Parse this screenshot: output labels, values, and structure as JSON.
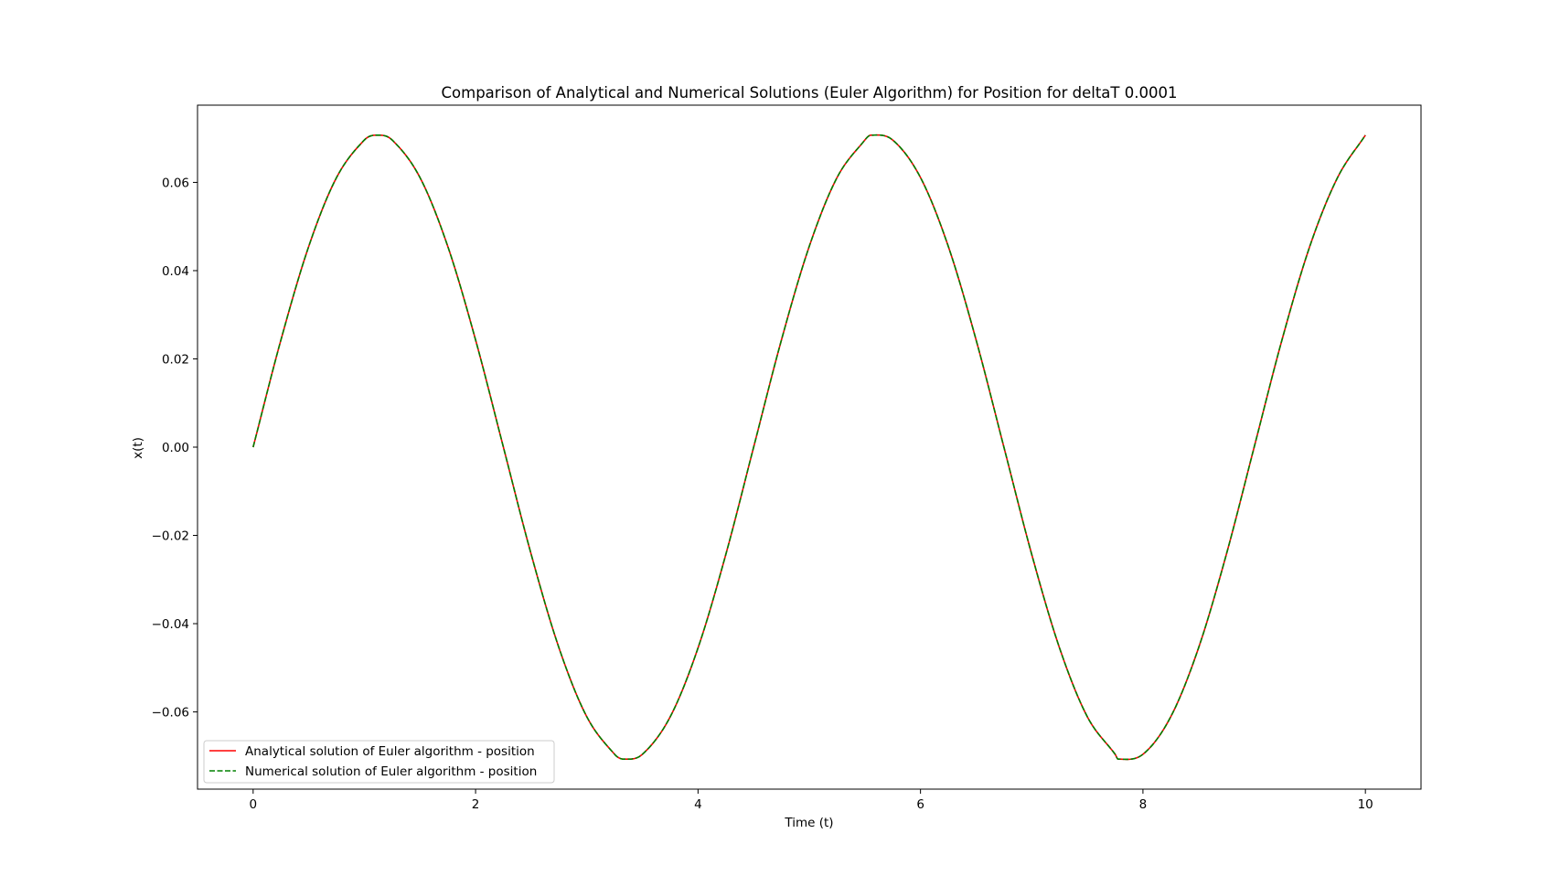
{
  "chart_data": {
    "type": "line",
    "title": "Comparison of Analytical and Numerical Solutions (Euler Algorithm) for Position for deltaT 0.0001",
    "xlabel": "Time (t)",
    "ylabel": "x(t)",
    "xlim": [
      -0.5,
      10.5
    ],
    "ylim": [
      -0.0775,
      0.0775
    ],
    "x_ticks": [
      0,
      2,
      4,
      6,
      8,
      10
    ],
    "x_tick_labels": [
      "0",
      "2",
      "4",
      "6",
      "8",
      "10"
    ],
    "y_ticks": [
      -0.06,
      -0.04,
      -0.02,
      0.0,
      0.02,
      0.04,
      0.06
    ],
    "y_tick_labels": [
      "−0.06",
      "−0.04",
      "−0.02",
      "0.00",
      "0.02",
      "0.04",
      "0.06"
    ],
    "grid": false,
    "legend_position": "lower-left",
    "series": [
      {
        "name": "Analytical solution of Euler algorithm - position",
        "color": "#ff0000",
        "style": "solid",
        "x": [
          0,
          0.25,
          0.5,
          0.75,
          1.0,
          1.111,
          1.25,
          1.5,
          1.75,
          2.0,
          2.25,
          2.5,
          2.75,
          3.0,
          3.25,
          3.333,
          3.5,
          3.75,
          4.0,
          4.25,
          4.5,
          4.75,
          5.0,
          5.25,
          5.5,
          5.555,
          5.75,
          6.0,
          6.25,
          6.5,
          6.75,
          7.0,
          7.25,
          7.5,
          7.75,
          7.777,
          8.0,
          8.25,
          8.5,
          8.75,
          9.0,
          9.25,
          9.5,
          9.75,
          10.0
        ],
        "y": [
          0.0,
          0.0243,
          0.0455,
          0.0611,
          0.0696,
          0.0707,
          0.0696,
          0.0611,
          0.0455,
          0.0243,
          0.0,
          -0.0243,
          -0.0455,
          -0.0611,
          -0.0696,
          -0.0707,
          -0.0696,
          -0.0611,
          -0.0455,
          -0.0243,
          0.0,
          0.0243,
          0.0455,
          0.0611,
          0.0696,
          0.0707,
          0.0696,
          0.0611,
          0.0455,
          0.0243,
          0.0,
          -0.0243,
          -0.0455,
          -0.0611,
          -0.0696,
          -0.0707,
          -0.0696,
          -0.0611,
          -0.0455,
          -0.0243,
          0.0,
          0.0243,
          0.0455,
          0.0611,
          0.0707
        ]
      },
      {
        "name": "Numerical solution of Euler algorithm - position",
        "color": "#008000",
        "style": "dashed",
        "x": [
          0,
          0.25,
          0.5,
          0.75,
          1.0,
          1.111,
          1.25,
          1.5,
          1.75,
          2.0,
          2.25,
          2.5,
          2.75,
          3.0,
          3.25,
          3.333,
          3.5,
          3.75,
          4.0,
          4.25,
          4.5,
          4.75,
          5.0,
          5.25,
          5.5,
          5.555,
          5.75,
          6.0,
          6.25,
          6.5,
          6.75,
          7.0,
          7.25,
          7.5,
          7.75,
          7.777,
          8.0,
          8.25,
          8.5,
          8.75,
          9.0,
          9.25,
          9.5,
          9.75,
          10.0
        ],
        "y": [
          0.0,
          0.0243,
          0.0455,
          0.0611,
          0.0696,
          0.0707,
          0.0696,
          0.0611,
          0.0455,
          0.0243,
          0.0,
          -0.0243,
          -0.0455,
          -0.0611,
          -0.0696,
          -0.0707,
          -0.0696,
          -0.0611,
          -0.0455,
          -0.0243,
          0.0,
          0.0243,
          0.0455,
          0.0611,
          0.0696,
          0.0707,
          0.0696,
          0.0611,
          0.0455,
          0.0243,
          0.0,
          -0.0243,
          -0.0455,
          -0.0611,
          -0.0696,
          -0.0707,
          -0.0696,
          -0.0611,
          -0.0455,
          -0.0243,
          0.0,
          0.0243,
          0.0455,
          0.0611,
          0.0707
        ]
      }
    ]
  }
}
